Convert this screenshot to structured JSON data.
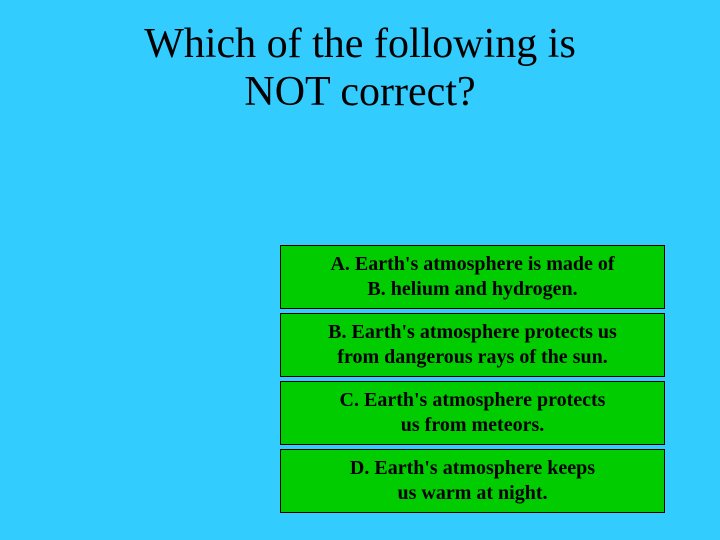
{
  "background_color": "#33ccff",
  "question": {
    "line1": "Which of the following is",
    "line2": "NOT correct?",
    "font_size": 42,
    "color": "#000000"
  },
  "answers": {
    "box_bg_color": "#00cc00",
    "border_color": "#000000",
    "text_color": "#000000",
    "font_size": 20,
    "a": {
      "line1": "A.  Earth's atmosphere is made of",
      "line2": "B.   helium and hydrogen."
    },
    "b": {
      "line1": "B. Earth's atmosphere protects us",
      "line2": "from dangerous rays of the sun."
    },
    "c": {
      "line1": "C. Earth's atmosphere protects",
      "line2": "us from meteors."
    },
    "d": {
      "line1": "D. Earth's atmosphere keeps",
      "line2": "us warm at night."
    }
  }
}
